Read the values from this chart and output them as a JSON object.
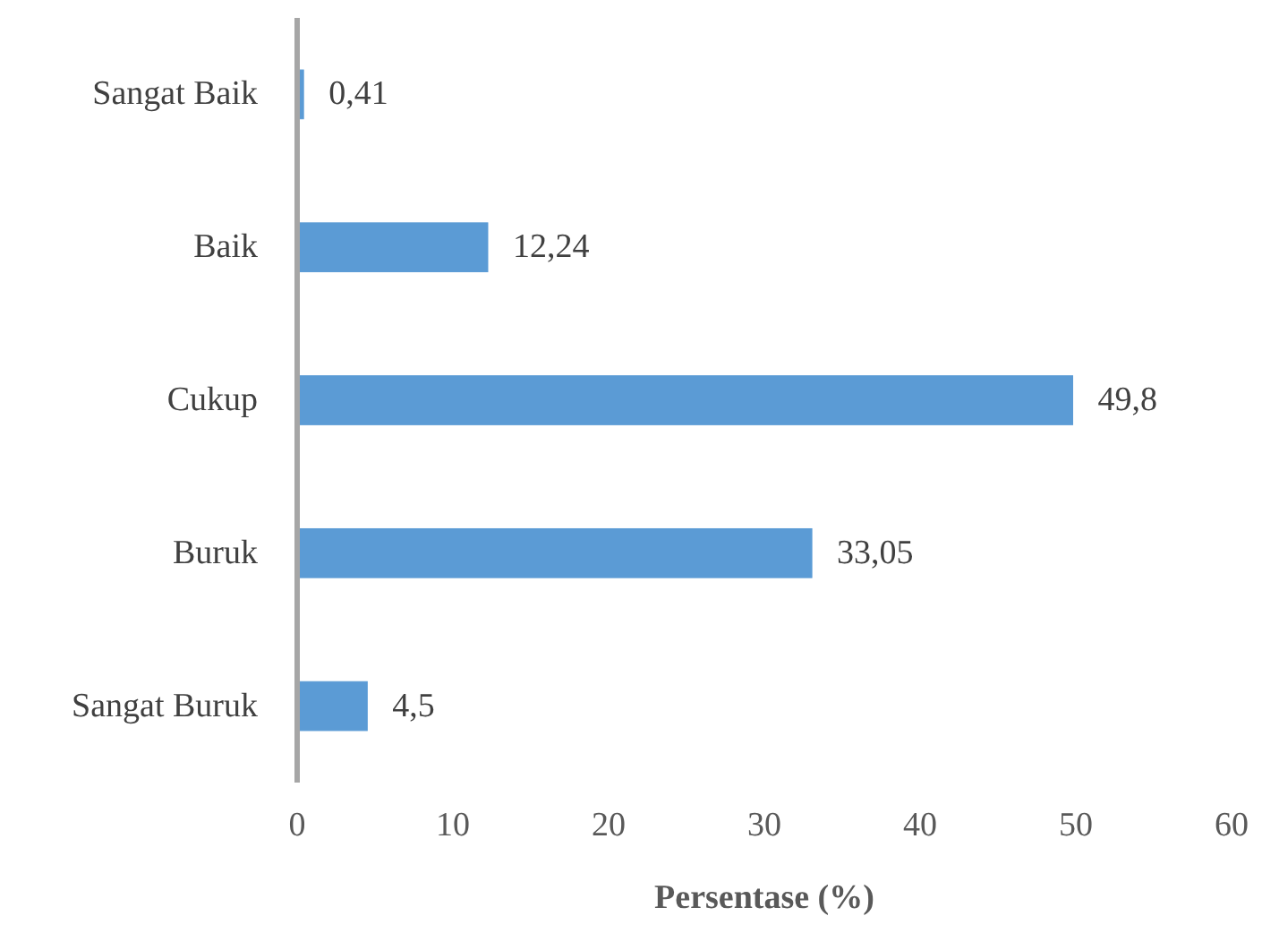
{
  "chart_data": {
    "type": "bar",
    "orientation": "horizontal",
    "xlabel": "Persentase (%)",
    "categories": [
      "Sangat Baik",
      "Baik",
      "Cukup",
      "Buruk",
      "Sangat Buruk"
    ],
    "values": [
      0.41,
      12.24,
      49.8,
      33.05,
      4.5
    ],
    "value_labels": [
      "0,41",
      "12,24",
      "49,8",
      "33,05",
      "4,5"
    ],
    "color": "#5b9bd5",
    "xlim": [
      0,
      60
    ],
    "xticks": [
      0,
      10,
      20,
      30,
      40,
      50,
      60
    ],
    "grid": false
  }
}
